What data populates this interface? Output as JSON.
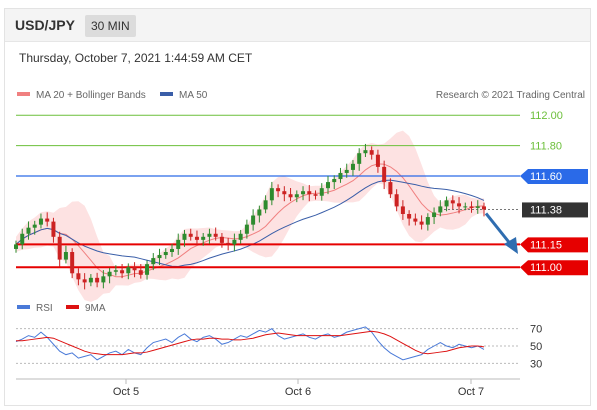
{
  "header": {
    "symbol": "USD/JPY",
    "timeframe": "30 MIN"
  },
  "timestamp": "Thursday, October 7, 2021 1:44:59 AM CET",
  "legend": {
    "ma20_label": "MA 20 + Bollinger Bands",
    "ma50_label": "MA 50",
    "copyright": "Research © 2021 Trading Central"
  },
  "rsi_legend": {
    "rsi_label": "RSI",
    "ma9_label": "9MA"
  },
  "colors": {
    "ma20": "#f08080",
    "ma50": "#3a5ea8",
    "bollinger_fill": "#fde2e2",
    "candle_up": "#2e8b2e",
    "candle_down": "#cc2222",
    "resistance_green": "#6cbf3a",
    "resistance_blue": "#2a6ae8",
    "support_red": "#e60000",
    "last_price_badge": "#333333",
    "rsi": "#4a7ad8",
    "rsi_ma": "#dd1111"
  },
  "chart_data": [
    {
      "type": "candlestick",
      "title": "USD/JPY 30 MIN",
      "x_ticks": [
        "Oct 5",
        "Oct 6",
        "Oct 7"
      ],
      "ylim": [
        110.85,
        112.1
      ],
      "grid": false,
      "legend_position": "top-left",
      "price_levels": [
        {
          "value": 112.0,
          "label": "112.00",
          "kind": "resistance-green"
        },
        {
          "value": 111.8,
          "label": "111.80",
          "kind": "resistance-green"
        },
        {
          "value": 111.6,
          "label": "111.60",
          "kind": "resistance-blue"
        },
        {
          "value": 111.38,
          "label": "111.38",
          "kind": "last-price"
        },
        {
          "value": 111.15,
          "label": "111.15",
          "kind": "support-red"
        },
        {
          "value": 111.0,
          "label": "111.00",
          "kind": "support-red"
        }
      ],
      "close_series": [
        111.15,
        111.22,
        111.26,
        111.28,
        111.32,
        111.3,
        111.2,
        111.05,
        111.1,
        110.96,
        110.92,
        110.9,
        110.93,
        110.9,
        110.94,
        110.97,
        110.98,
        110.96,
        111.0,
        110.98,
        110.95,
        111.02,
        111.06,
        111.08,
        111.1,
        111.12,
        111.18,
        111.22,
        111.2,
        111.18,
        111.2,
        111.22,
        111.2,
        111.16,
        111.15,
        111.18,
        111.22,
        111.28,
        111.34,
        111.38,
        111.44,
        111.52,
        111.5,
        111.48,
        111.46,
        111.48,
        111.5,
        111.48,
        111.47,
        111.52,
        111.56,
        111.58,
        111.62,
        111.64,
        111.68,
        111.75,
        111.77,
        111.74,
        111.66,
        111.56,
        111.48,
        111.4,
        111.35,
        111.32,
        111.3,
        111.28,
        111.33,
        111.36,
        111.4,
        111.44,
        111.42,
        111.4,
        111.4,
        111.39,
        111.4,
        111.38
      ],
      "series": [
        {
          "name": "MA 20 + Bollinger Bands",
          "values": []
        },
        {
          "name": "MA 50",
          "values": []
        }
      ]
    },
    {
      "type": "line",
      "title": "",
      "y_ticks": [
        70,
        50,
        30
      ],
      "ylim": [
        20,
        80
      ],
      "series": [
        {
          "name": "RSI",
          "values": [
            55,
            58,
            62,
            60,
            66,
            60,
            52,
            44,
            40,
            42,
            36,
            38,
            40,
            34,
            38,
            42,
            44,
            40,
            46,
            42,
            40,
            48,
            54,
            56,
            58,
            54,
            60,
            64,
            58,
            55,
            60,
            62,
            58,
            52,
            54,
            58,
            62,
            60,
            64,
            68,
            66,
            70,
            62,
            58,
            60,
            62,
            64,
            60,
            58,
            62,
            64,
            60,
            62,
            66,
            68,
            70,
            72,
            66,
            56,
            48,
            42,
            38,
            34,
            36,
            38,
            40,
            46,
            50,
            54,
            50,
            48,
            52,
            50,
            48,
            50,
            46
          ]
        },
        {
          "name": "9MA",
          "values": [
            56,
            56,
            57,
            58,
            59,
            60,
            59,
            56,
            53,
            50,
            47,
            44,
            42,
            41,
            40,
            40,
            40,
            40,
            41,
            42,
            42,
            43,
            45,
            47,
            49,
            51,
            53,
            55,
            57,
            58,
            58,
            59,
            59,
            58,
            58,
            57,
            57,
            58,
            59,
            61,
            63,
            64,
            65,
            64,
            63,
            62,
            62,
            62,
            62,
            62,
            62,
            62,
            62,
            63,
            64,
            65,
            66,
            67,
            66,
            64,
            61,
            57,
            53,
            49,
            45,
            42,
            41,
            42,
            43,
            44,
            46,
            48,
            49,
            50,
            50,
            49
          ]
        }
      ]
    }
  ]
}
